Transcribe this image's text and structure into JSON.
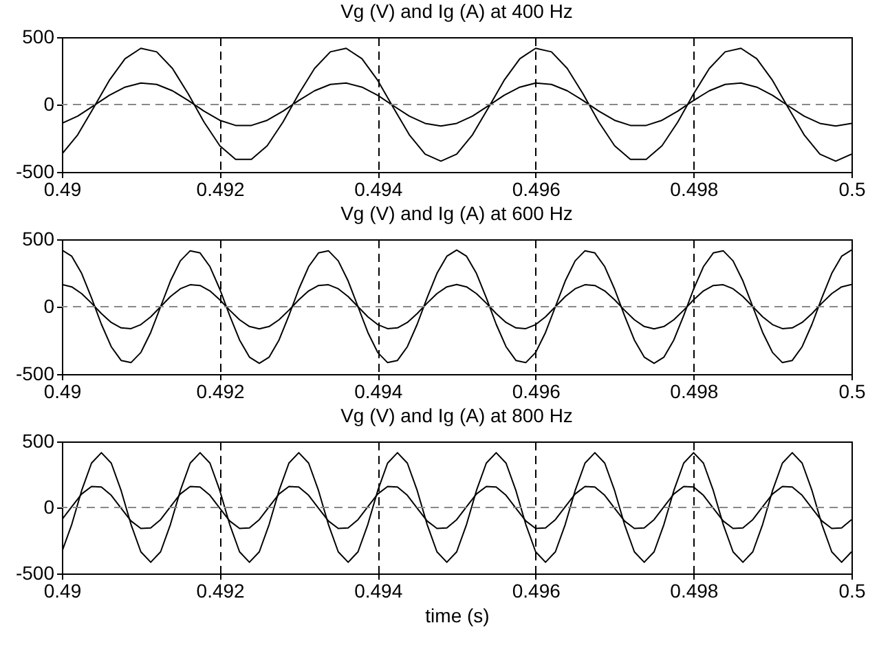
{
  "chart_data": [
    {
      "type": "line",
      "title": "Vg (V) and Ig (A) at 400 Hz",
      "x": [
        0.49,
        0.4902,
        0.4904,
        0.4906,
        0.4908,
        0.491,
        0.4912,
        0.4914,
        0.4916,
        0.4918,
        0.492,
        0.4922,
        0.4924,
        0.4926,
        0.4928,
        0.493,
        0.4932,
        0.4934,
        0.4936,
        0.4938,
        0.494,
        0.4942,
        0.4944,
        0.4946,
        0.4948,
        0.495,
        0.4952,
        0.4954,
        0.4956,
        0.4958,
        0.496,
        0.4962,
        0.4964,
        0.4966,
        0.4968,
        0.497,
        0.4972,
        0.4974,
        0.4976,
        0.4978,
        0.498,
        0.4982,
        0.4984,
        0.4986,
        0.4988,
        0.499,
        0.4992,
        0.4994,
        0.4996,
        0.4998,
        0.5
      ],
      "series": [
        {
          "color": "#000000",
          "values": [
            -368,
            -225,
            -26,
            179,
            340,
            417,
            391,
            268,
            79,
            -130,
            -306,
            -407,
            -407,
            -306,
            -130,
            79,
            268,
            391,
            417,
            340,
            179,
            -26,
            -225,
            -368,
            -420,
            -368,
            -225,
            -26,
            179,
            340,
            417,
            391,
            268,
            79,
            -130,
            -306,
            -407,
            -407,
            -306,
            -130,
            79,
            268,
            391,
            417,
            340,
            179,
            -26,
            -225,
            -368,
            -420,
            -368
          ]
        },
        {
          "color": "#000000",
          "values": [
            -140,
            -86,
            -10,
            68,
            129,
            159,
            149,
            102,
            30,
            -49,
            -117,
            -155,
            -155,
            -117,
            -49,
            30,
            102,
            149,
            159,
            129,
            68,
            -10,
            -86,
            -140,
            -160,
            -140,
            -86,
            -10,
            68,
            129,
            159,
            149,
            102,
            30,
            -49,
            -117,
            -155,
            -155,
            -117,
            -49,
            30,
            102,
            149,
            159,
            129,
            68,
            -10,
            -86,
            -140,
            -160,
            -140
          ]
        }
      ],
      "xlim": [
        0.49,
        0.5
      ],
      "xticks": [
        0.49,
        0.492,
        0.494,
        0.496,
        0.498,
        0.5
      ],
      "ylim": [
        -500,
        500
      ],
      "yticks": [
        -500,
        0,
        500
      ],
      "grid": "x",
      "line_style": "solid",
      "ref_lines": [
        {
          "axis": "y",
          "value": 0,
          "color": "#888888",
          "line_style": "dashed"
        }
      ]
    },
    {
      "type": "line",
      "title": "Vg (V) and Ig (A) at 600 Hz",
      "x": [
        0.49,
        0.490125,
        0.49025,
        0.490375,
        0.4905,
        0.490625,
        0.49075,
        0.490875,
        0.491,
        0.491125,
        0.49125,
        0.491375,
        0.4915,
        0.491625,
        0.49175,
        0.491875,
        0.492,
        0.492125,
        0.49225,
        0.492375,
        0.4925,
        0.492625,
        0.49275,
        0.492875,
        0.493,
        0.493125,
        0.49325,
        0.493375,
        0.4935,
        0.493625,
        0.49375,
        0.493875,
        0.494,
        0.494125,
        0.49425,
        0.494375,
        0.4945,
        0.494625,
        0.49475,
        0.494875,
        0.495,
        0.495125,
        0.49525,
        0.495375,
        0.4955,
        0.495625,
        0.49575,
        0.495875,
        0.496,
        0.496125,
        0.49625,
        0.496375,
        0.4965,
        0.496625,
        0.49675,
        0.496875,
        0.497,
        0.497125,
        0.49725,
        0.497375,
        0.4975,
        0.497625,
        0.49775,
        0.497875,
        0.498,
        0.498125,
        0.49825,
        0.498375,
        0.4985,
        0.498625,
        0.49875,
        0.498875,
        0.499,
        0.499125,
        0.49925,
        0.499375,
        0.4995,
        0.499625,
        0.49975,
        0.499875,
        0.5
      ],
      "series": [
        {
          "color": "#000000",
          "values": [
            420,
            374,
            247,
            66,
            -130,
            -297,
            -399,
            -415,
            -340,
            -191,
            0,
            191,
            340,
            415,
            399,
            297,
            130,
            -66,
            -247,
            -374,
            -420,
            -374,
            -247,
            -66,
            130,
            297,
            399,
            415,
            340,
            191,
            0,
            -191,
            -340,
            -415,
            -399,
            -297,
            -130,
            66,
            247,
            374,
            420,
            374,
            247,
            66,
            -130,
            -297,
            -399,
            -415,
            -340,
            -191,
            0,
            191,
            340,
            415,
            399,
            297,
            130,
            -66,
            -247,
            -374,
            -420,
            -374,
            -247,
            -66,
            130,
            297,
            399,
            415,
            340,
            191,
            0,
            -191,
            -340,
            -415,
            -399,
            -297,
            -130,
            66,
            247,
            374,
            420
          ]
        },
        {
          "color": "#000000",
          "values": [
            165,
            147,
            97,
            26,
            -51,
            -117,
            -157,
            -163,
            -133,
            -75,
            0,
            75,
            133,
            163,
            157,
            117,
            51,
            -26,
            -97,
            -147,
            -165,
            -147,
            -97,
            -26,
            51,
            117,
            157,
            163,
            133,
            75,
            0,
            -75,
            -133,
            -163,
            -157,
            -117,
            -51,
            26,
            97,
            147,
            165,
            147,
            97,
            26,
            -51,
            -117,
            -157,
            -163,
            -133,
            -75,
            0,
            75,
            133,
            163,
            157,
            117,
            51,
            -26,
            -97,
            -147,
            -165,
            -147,
            -97,
            -26,
            51,
            117,
            157,
            163,
            133,
            75,
            0,
            -75,
            -133,
            -163,
            -157,
            -117,
            -51,
            26,
            97,
            147,
            165
          ]
        }
      ],
      "xlim": [
        0.49,
        0.5
      ],
      "xticks": [
        0.49,
        0.492,
        0.494,
        0.496,
        0.498,
        0.5
      ],
      "ylim": [
        -500,
        500
      ],
      "yticks": [
        -500,
        0,
        500
      ],
      "grid": "x",
      "line_style": "solid",
      "ref_lines": [
        {
          "axis": "y",
          "value": 0,
          "color": "#888888",
          "line_style": "dashed"
        }
      ]
    },
    {
      "type": "line",
      "title": "Vg (V) and Ig (A) at 800 Hz",
      "xlabel": "time (s)",
      "x": [
        0.49,
        0.490125,
        0.49025,
        0.490375,
        0.4905,
        0.490625,
        0.49075,
        0.490875,
        0.491,
        0.491125,
        0.49125,
        0.491375,
        0.4915,
        0.491625,
        0.49175,
        0.491875,
        0.492,
        0.492125,
        0.49225,
        0.492375,
        0.4925,
        0.492625,
        0.49275,
        0.492875,
        0.493,
        0.493125,
        0.49325,
        0.493375,
        0.4935,
        0.493625,
        0.49375,
        0.493875,
        0.494,
        0.494125,
        0.49425,
        0.494375,
        0.4945,
        0.494625,
        0.49475,
        0.494875,
        0.495,
        0.495125,
        0.49525,
        0.495375,
        0.4955,
        0.495625,
        0.49575,
        0.495875,
        0.496,
        0.496125,
        0.49625,
        0.496375,
        0.4965,
        0.496625,
        0.49675,
        0.496875,
        0.497,
        0.497125,
        0.49725,
        0.497375,
        0.4975,
        0.497625,
        0.49775,
        0.497875,
        0.498,
        0.498125,
        0.49825,
        0.498375,
        0.4985,
        0.498625,
        0.49875,
        0.498875,
        0.499,
        0.499125,
        0.49925,
        0.499375,
        0.4995,
        0.499625,
        0.49975,
        0.499875,
        0.5
      ],
      "series": [
        {
          "color": "#000000",
          "values": [
            -336,
            -128,
            128,
            336,
            415,
            336,
            128,
            -128,
            -336,
            -415,
            -336,
            -128,
            128,
            336,
            415,
            336,
            128,
            -128,
            -336,
            -415,
            -336,
            -128,
            128,
            336,
            415,
            336,
            128,
            -128,
            -336,
            -415,
            -336,
            -128,
            128,
            336,
            415,
            336,
            128,
            -128,
            -336,
            -415,
            -336,
            -128,
            128,
            336,
            415,
            336,
            128,
            -128,
            -336,
            -415,
            -336,
            -128,
            128,
            336,
            415,
            336,
            128,
            -128,
            -336,
            -415,
            -336,
            -128,
            128,
            336,
            415,
            336,
            128,
            -128,
            -336,
            -415,
            -336,
            -128,
            128,
            336,
            415,
            336,
            128,
            -128,
            -336,
            -415,
            -336
          ]
        },
        {
          "color": "#000000",
          "values": [
            -92,
            6,
            102,
            159,
            155,
            92,
            -6,
            -102,
            -159,
            -155,
            -92,
            6,
            102,
            159,
            155,
            92,
            -6,
            -102,
            -159,
            -155,
            -92,
            6,
            102,
            159,
            155,
            92,
            -6,
            -102,
            -159,
            -155,
            -92,
            6,
            102,
            159,
            155,
            92,
            -6,
            -102,
            -159,
            -155,
            -92,
            6,
            102,
            159,
            155,
            92,
            -6,
            -102,
            -159,
            -155,
            -92,
            6,
            102,
            159,
            155,
            92,
            -6,
            -102,
            -159,
            -155,
            -92,
            6,
            102,
            159,
            155,
            92,
            -6,
            -102,
            -159,
            -155,
            -92,
            6,
            102,
            159,
            155,
            92,
            -6,
            -102,
            -159,
            -155,
            -92
          ]
        }
      ],
      "xlim": [
        0.49,
        0.5
      ],
      "xticks": [
        0.49,
        0.492,
        0.494,
        0.496,
        0.498,
        0.5
      ],
      "ylim": [
        -500,
        500
      ],
      "yticks": [
        -500,
        0,
        500
      ],
      "grid": "x",
      "line_style": "solid",
      "ref_lines": [
        {
          "axis": "y",
          "value": 0,
          "color": "#888888",
          "line_style": "dashed"
        }
      ]
    }
  ]
}
